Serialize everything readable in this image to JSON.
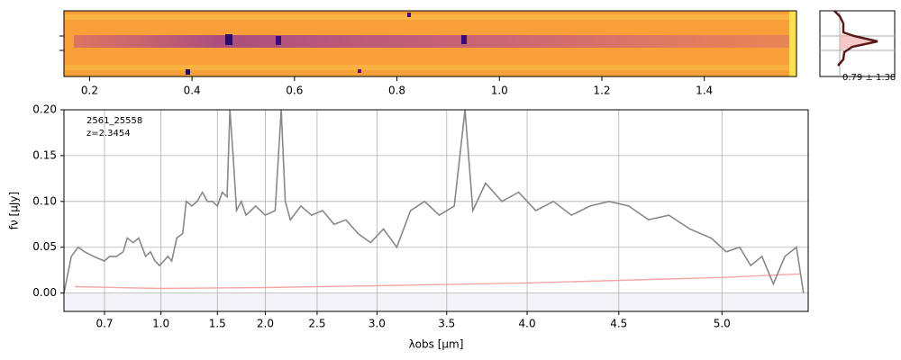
{
  "chart_data": [
    {
      "type": "heatmap",
      "xlim": [
        0.15,
        1.58
      ],
      "xticks": [
        0.2,
        0.4,
        0.6,
        0.8,
        {
          "value": 1.0,
          "label": "1.0"
        },
        1.2,
        1.4
      ]
    },
    {
      "type": "histogram",
      "label": "0.79 ± 1.38"
    },
    {
      "type": "line",
      "xscale": "prism",
      "grid": true,
      "annotations": [
        "2561_25558",
        "z=2.3454"
      ],
      "xlabel": "λobs [μm]",
      "ylabel": "fν [μJy]",
      "xlim": [
        0.57,
        5.38
      ],
      "ylim": [
        -0.02,
        0.2
      ],
      "xticks": [
        0.7,
        {
          "value": 1.0,
          "label": "1.0"
        },
        1.5,
        {
          "value": 2.0,
          "label": "2.0"
        },
        2.5,
        {
          "value": 3.0,
          "label": "3.0"
        },
        3.5,
        {
          "value": 4.0,
          "label": "4.0"
        },
        4.5,
        {
          "value": 5.0,
          "label": "5.0"
        }
      ],
      "yticks": [
        {
          "value": 0,
          "label": "0.00"
        },
        0.05,
        {
          "value": 0.1,
          "label": "0.10"
        },
        0.15,
        {
          "value": 0.2,
          "label": "0.20"
        }
      ],
      "series": [
        {
          "color": "#888888",
          "x": [
            0.57,
            0.59,
            0.61,
            0.63,
            0.66,
            0.7,
            0.72,
            0.75,
            0.78,
            0.8,
            0.83,
            0.86,
            0.88,
            0.9,
            0.93,
            0.96,
            0.99,
            1.02,
            1.05,
            1.08,
            1.12,
            1.17,
            1.2,
            1.25,
            1.3,
            1.35,
            1.4,
            1.45,
            1.5,
            1.55,
            1.6,
            1.63,
            1.67,
            1.7,
            1.75,
            1.8,
            1.85,
            1.9,
            2.0,
            2.1,
            2.16,
            2.2,
            2.25,
            2.35,
            2.45,
            2.55,
            2.65,
            2.75,
            2.85,
            2.95,
            3.05,
            3.15,
            3.25,
            3.35,
            3.45,
            3.55,
            3.62,
            3.67,
            3.75,
            3.85,
            3.95,
            4.05,
            4.15,
            4.25,
            4.35,
            4.45,
            4.55,
            4.65,
            4.75,
            4.85,
            4.95,
            5.02,
            5.08,
            5.13,
            5.18,
            5.23,
            5.28,
            5.33,
            5.36
          ],
          "values": [
            0.0,
            0.04,
            0.05,
            0.045,
            0.04,
            0.035,
            0.04,
            0.04,
            0.045,
            0.06,
            0.055,
            0.06,
            0.05,
            0.04,
            0.045,
            0.035,
            0.03,
            0.035,
            0.04,
            0.035,
            0.06,
            0.065,
            0.1,
            0.095,
            0.1,
            0.11,
            0.1,
            0.1,
            0.095,
            0.11,
            0.105,
            0.2,
            0.14,
            0.09,
            0.1,
            0.085,
            0.09,
            0.095,
            0.085,
            0.09,
            0.2,
            0.1,
            0.08,
            0.095,
            0.085,
            0.09,
            0.075,
            0.08,
            0.065,
            0.055,
            0.07,
            0.05,
            0.09,
            0.1,
            0.085,
            0.095,
            0.2,
            0.09,
            0.12,
            0.1,
            0.11,
            0.09,
            0.1,
            0.085,
            0.095,
            0.1,
            0.095,
            0.08,
            0.085,
            0.07,
            0.06,
            0.045,
            0.05,
            0.03,
            0.04,
            0.01,
            0.04,
            0.05,
            0.0
          ]
        },
        {
          "color": "#f4a6a6",
          "x": [
            0.6,
            1.0,
            2.0,
            3.0,
            4.0,
            5.0,
            5.35
          ],
          "values": [
            0.007,
            0.005,
            0.006,
            0.008,
            0.011,
            0.017,
            0.021
          ]
        }
      ]
    }
  ]
}
